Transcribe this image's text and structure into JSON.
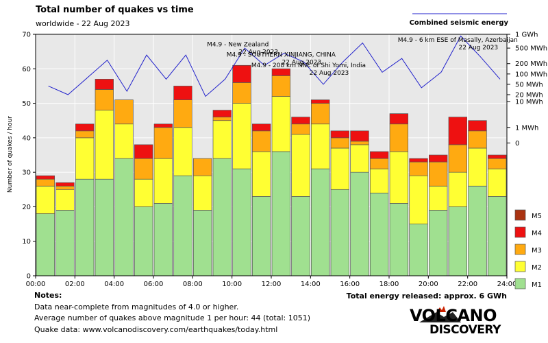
{
  "chart_data": {
    "type": "bar",
    "stacked": true,
    "title": "Total number of quakes vs time",
    "subtitle": "worldwide - 22 Aug 2023",
    "ylabel": "Number of quakes / hour",
    "ylim": [
      0,
      70
    ],
    "y_ticks": [
      "0",
      "10",
      "20",
      "30",
      "40",
      "50",
      "60",
      "70"
    ],
    "x_ticks": [
      "00:00",
      "02:00",
      "04:00",
      "06:00",
      "08:00",
      "10:00",
      "12:00",
      "14:00",
      "16:00",
      "18:00",
      "20:00",
      "22:00",
      "24:00"
    ],
    "hours": 24,
    "series": [
      {
        "name": "M1",
        "color": "#a0e090",
        "values": [
          18,
          19,
          28,
          28,
          34,
          20,
          21,
          29,
          19,
          34,
          31,
          23,
          36,
          23,
          31,
          25,
          30,
          24,
          21,
          15,
          19,
          20,
          26,
          23
        ]
      },
      {
        "name": "M2",
        "color": "#ffff33",
        "values": [
          8,
          6,
          12,
          20,
          10,
          8,
          13,
          14,
          10,
          11,
          19,
          13,
          16,
          18,
          13,
          12,
          8,
          7,
          15,
          14,
          7,
          10,
          11,
          8
        ]
      },
      {
        "name": "M3",
        "color": "#ffaa11",
        "values": [
          2,
          1,
          2,
          6,
          7,
          6,
          9,
          8,
          5,
          1,
          6,
          6,
          6,
          3,
          6,
          3,
          1,
          3,
          8,
          4,
          7,
          8,
          5,
          3
        ]
      },
      {
        "name": "M4",
        "color": "#ee1111",
        "values": [
          1,
          1,
          2,
          3,
          0,
          4,
          1,
          4,
          0,
          2,
          5,
          2,
          2,
          2,
          1,
          2,
          3,
          2,
          3,
          1,
          2,
          8,
          3,
          1
        ]
      },
      {
        "name": "M5",
        "color": "#aa3311",
        "values": [
          0,
          0,
          0,
          0,
          0,
          0,
          0,
          0,
          0,
          0,
          0,
          0,
          0,
          0,
          0,
          0,
          0,
          0,
          0,
          0,
          0,
          0,
          0,
          0
        ]
      }
    ],
    "energy_series": {
      "name": "Combined seismic energy",
      "color": "#2222cc",
      "right_ticks": [
        "1 GWh",
        "500 MWh",
        "200 MWh",
        "100 MWh",
        "50 MWh",
        "20 MWh",
        "10 MWh",
        "1 MWh",
        "0"
      ],
      "right_tick_y_values": [
        70,
        66,
        61.5,
        58.5,
        55.5,
        52.5,
        50.5,
        43,
        38.5
      ],
      "values": [
        55,
        52.5,
        57.5,
        62.5,
        53.5,
        64,
        57,
        64,
        52,
        57,
        66,
        61,
        64.5,
        62,
        55.5,
        62,
        67.5,
        59,
        63,
        54.5,
        59,
        69.5,
        63.5,
        57
      ]
    },
    "annotations": [
      {
        "line1": "M4.9 - New Zealand",
        "line2": "22 Aug 2023",
        "hour": 10.3
      },
      {
        "line1": "M4.9 - SOUTHERN XINJIANG, CHINA",
        "line2": "22 Aug 2023",
        "hour": 12.5
      },
      {
        "line1": "M4.9 - 208 km NNE of Shi Yomi, India",
        "line2": "22 Aug 2023",
        "hour": 13.9
      },
      {
        "line1": "M4.9 - 6 km ESE of Masally, Azerbaijan",
        "line2": "22 Aug 2023",
        "hour": 21.5
      }
    ],
    "legend": "bottom-right",
    "grid": true
  },
  "notes": {
    "heading": "Notes:",
    "line1": "Data near-complete from magnitudes of 4.0 or higher.",
    "line2": "Average number of quakes above magnitude 1 per hour: 44 (total: 1051)",
    "line3": "Quake data: www.volcanodiscovery.com/earthquakes/today.html"
  },
  "total_energy": "Total energy released: approx. 6 GWh",
  "logo": {
    "word1": "VOLCANO",
    "word2": "DISCOVERY"
  }
}
